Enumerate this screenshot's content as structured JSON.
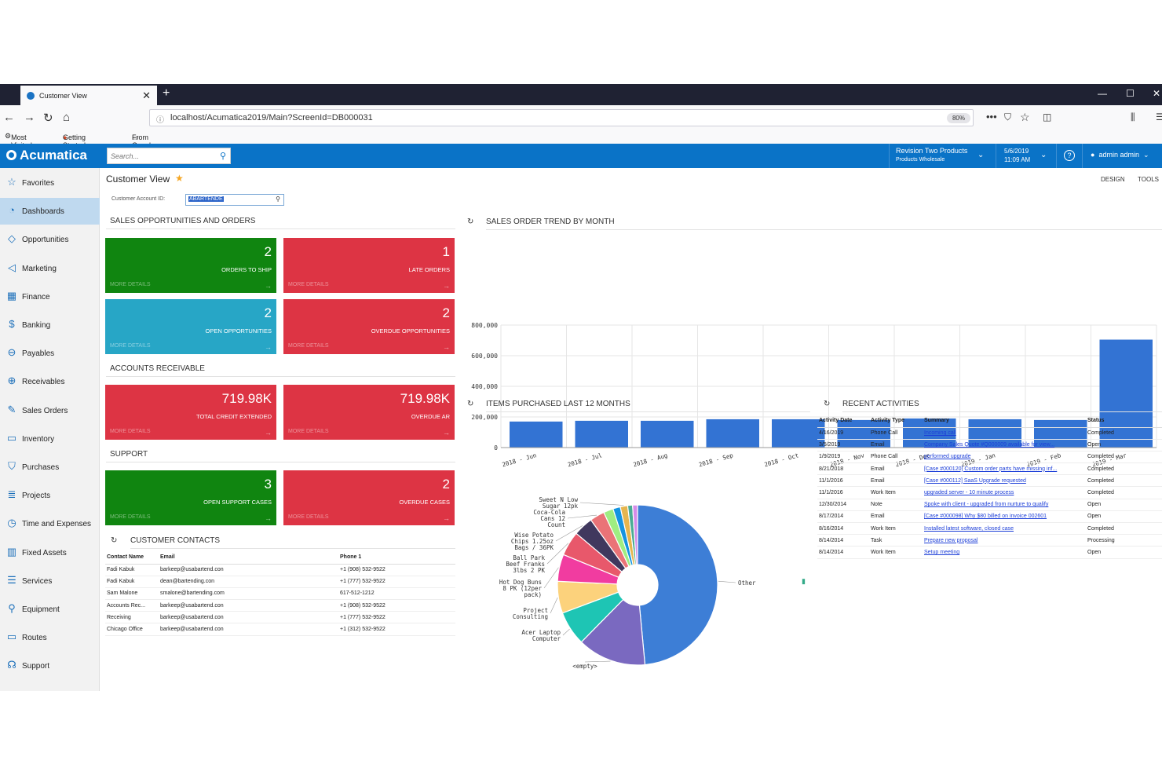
{
  "browser": {
    "tab_title": "Customer View",
    "tab_close": "✕",
    "new_tab": "+",
    "url": "localhost/Acumatica2019/Main?ScreenId=DB000031",
    "zoom": "80%",
    "bookmarks": [
      "Most Visited",
      "Getting Started",
      "From Google Chrome"
    ]
  },
  "header": {
    "logo": "Acumatica",
    "search_placeholder": "Search...",
    "company": "Revision Two Products",
    "branch": "Products Wholesale",
    "date": "5/6/2019",
    "time": "11:09 AM",
    "help": "?",
    "user": "admin admin"
  },
  "sidebar": {
    "items": [
      {
        "label": "Favorites",
        "icon": "star-icon",
        "glyph": "☆"
      },
      {
        "label": "Dashboards",
        "icon": "dashboard-icon",
        "glyph": "◔"
      },
      {
        "label": "Opportunities",
        "icon": "tag-icon",
        "glyph": "◇"
      },
      {
        "label": "Marketing",
        "icon": "megaphone-icon",
        "glyph": "◁"
      },
      {
        "label": "Finance",
        "icon": "calculator-icon",
        "glyph": "▦"
      },
      {
        "label": "Banking",
        "icon": "dollar-icon",
        "glyph": "$"
      },
      {
        "label": "Payables",
        "icon": "minus-circle-icon",
        "glyph": "⊖"
      },
      {
        "label": "Receivables",
        "icon": "plus-circle-icon",
        "glyph": "⊕"
      },
      {
        "label": "Sales Orders",
        "icon": "pencil-icon",
        "glyph": "✎"
      },
      {
        "label": "Inventory",
        "icon": "truck-icon",
        "glyph": "▭"
      },
      {
        "label": "Purchases",
        "icon": "cart-icon",
        "glyph": "⛉"
      },
      {
        "label": "Projects",
        "icon": "list-icon",
        "glyph": "≣"
      },
      {
        "label": "Time and Expenses",
        "icon": "clock-icon",
        "glyph": "◷"
      },
      {
        "label": "Fixed Assets",
        "icon": "building-icon",
        "glyph": "▥"
      },
      {
        "label": "Services",
        "icon": "services-icon",
        "glyph": "☰"
      },
      {
        "label": "Equipment",
        "icon": "wrench-icon",
        "glyph": "⚲"
      },
      {
        "label": "Routes",
        "icon": "route-truck-icon",
        "glyph": "▭"
      },
      {
        "label": "Support",
        "icon": "headset-icon",
        "glyph": "☊"
      }
    ]
  },
  "page": {
    "title": "Customer View",
    "design": "DESIGN",
    "tools": "TOOLS",
    "account_label": "Customer Account ID:",
    "account_value": "ABARTENDE"
  },
  "sections": {
    "sales": "SALES OPPORTUNITIES AND ORDERS",
    "ar": "ACCOUNTS RECEIVABLE",
    "support": "SUPPORT",
    "contacts": "CUSTOMER CONTACTS",
    "trend": "SALES ORDER TREND BY MONTH",
    "items": "ITEMS PURCHASED LAST 12 MONTHS",
    "activities": "RECENT ACTIVITIES"
  },
  "tiles": {
    "more_details": "MORE DETAILS",
    "orders_to_ship": {
      "value": "2",
      "label": "ORDERS TO SHIP"
    },
    "late_orders": {
      "value": "1",
      "label": "LATE ORDERS"
    },
    "open_opportunities": {
      "value": "2",
      "label": "OPEN OPPORTUNITIES"
    },
    "overdue_opportunities": {
      "value": "2",
      "label": "OVERDUE OPPORTUNITIES"
    },
    "total_credit": {
      "value": "719.98K",
      "label": "TOTAL CREDIT EXTENDED"
    },
    "overdue_ar": {
      "value": "719.98K",
      "label": "OVERDUE AR"
    },
    "open_cases": {
      "value": "3",
      "label": "OPEN SUPPORT CASES"
    },
    "overdue_cases": {
      "value": "2",
      "label": "OVERDUE CASES"
    }
  },
  "contacts": {
    "headers": [
      "Contact Name",
      "Email",
      "Phone 1"
    ],
    "rows": [
      [
        "Fadi Kabuk",
        "barkeep@usabartend.con",
        "+1 (908) 532-9522"
      ],
      [
        "Fadi Kabuk",
        "dean@bartending.con",
        "+1 (777) 532-9522"
      ],
      [
        "Sam Malone",
        "smalone@bartending.com",
        "617-512-1212"
      ],
      [
        "Accounts Rec...",
        "barkeep@usabartend.con",
        "+1 (908) 532-9522"
      ],
      [
        "Receiving",
        "barkeep@usabartend.con",
        "+1 (777) 532-9522"
      ],
      [
        "Chicago Office",
        "barkeep@usabartend.con",
        "+1 (312) 532-9522"
      ]
    ]
  },
  "activities": {
    "headers": [
      "Activity Date",
      "Activity Type",
      "Summary",
      "Status"
    ],
    "rows": [
      [
        "4/16/2019",
        "Phone Call",
        "Incoming call",
        "Completed"
      ],
      [
        "3/5/2019",
        "Email",
        "Company Sales Quote #Q000009 available for view...",
        "Open"
      ],
      [
        "1/9/2019",
        "Phone Call",
        "performed upgrade",
        "Completed"
      ],
      [
        "8/21/2018",
        "Email",
        "[Case #000120] Custom order parts have missing inf...",
        "Completed"
      ],
      [
        "11/1/2016",
        "Email",
        "[Case #000112] SaaS Upgrade requested",
        "Completed"
      ],
      [
        "11/1/2016",
        "Work Item",
        "upgraded server - 10 minute process",
        "Completed"
      ],
      [
        "12/30/2014",
        "Note",
        "Spoke with client - upgraded from nurture to qualify",
        "Open"
      ],
      [
        "8/17/2014",
        "Email",
        "[Case #000098] Why $80 billed on invoice 002601",
        "Open"
      ],
      [
        "8/16/2014",
        "Work Item",
        "Installed latest software, closed case",
        "Completed"
      ],
      [
        "8/14/2014",
        "Task",
        "Prepare new proposal",
        "Processing"
      ],
      [
        "8/14/2014",
        "Work Item",
        "Setup meeting",
        "Open"
      ]
    ]
  },
  "chart_data": [
    {
      "type": "bar",
      "title": "SALES ORDER TREND BY MONTH",
      "categories": [
        "2018 - Jun",
        "2018 - Jul",
        "2018 - Aug",
        "2018 - Sep",
        "2018 - Oct",
        "2018 - Nov",
        "2018 - Dec",
        "2019 - Jan",
        "2019 - Feb",
        "2019 - Mar"
      ],
      "values": [
        170000,
        175000,
        175000,
        185000,
        185000,
        180000,
        190000,
        185000,
        180000,
        705000
      ],
      "ylim": [
        0,
        800000
      ],
      "yticks": [
        "0",
        "200,000",
        "400,000",
        "600,000",
        "800,000"
      ],
      "color": "#3373d3",
      "grid": true
    },
    {
      "type": "pie",
      "title": "ITEMS PURCHASED LAST 12 MONTHS",
      "donut": true,
      "slices": [
        {
          "label": "Other",
          "value": 49,
          "color": "#3d7ed6"
        },
        {
          "label": "<empty>",
          "value": 14,
          "color": "#7a69c0"
        },
        {
          "label": "Acer Laptop Computer",
          "value": 7,
          "color": "#1ec5b4"
        },
        {
          "label": "Project Consulting",
          "value": 6.5,
          "color": "#fcd27c"
        },
        {
          "label": "Hot Dog Buns 8 PK (12per pack)",
          "value": 5.5,
          "color": "#f13ca0"
        },
        {
          "label": "Ball Park Beef Franks 3lbs 2 PK",
          "value": 5,
          "color": "#e8586b"
        },
        {
          "label": "Wise Potato Chips 1.25oz Bags / 36PK",
          "value": 4,
          "color": "#40385e"
        },
        {
          "label": "Coca-Cola Cans 12 Count",
          "value": 3,
          "color": "#ea7377"
        },
        {
          "label": "",
          "value": 2,
          "color": "#9fed82"
        },
        {
          "label": "",
          "value": 1.5,
          "color": "#1494e0"
        },
        {
          "label": "Sweet N Low Sugar 12pk",
          "value": 1.5,
          "color": "#e5b54e"
        },
        {
          "label": "",
          "value": 1,
          "color": "#4aac94"
        },
        {
          "label": "",
          "value": 1,
          "color": "#d58be8"
        }
      ]
    }
  ]
}
